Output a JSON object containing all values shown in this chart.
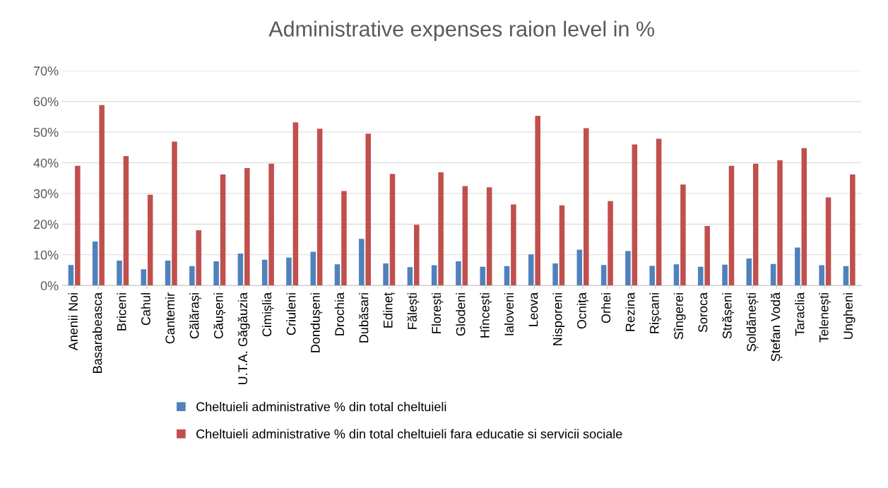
{
  "chart_data": {
    "type": "bar",
    "title": "Administrative expenses raion level in %",
    "categories": [
      "Anenii Noi",
      "Basarabeasca",
      "Briceni",
      "Cahul",
      "Cantemir",
      "Călărași",
      "Căușeni",
      "U.T.A. Găgăuzia",
      "Cimișlia",
      "Criuleni",
      "Dondușeni",
      "Drochia",
      "Dubăsari",
      "Edineț",
      "Fălești",
      "Florești",
      "Glodeni",
      "Hîncești",
      "Ialoveni",
      "Leova",
      "Nisporeni",
      "Ocnița",
      "Orhei",
      "Rezina",
      "Rișcani",
      "Sîngerei",
      "Soroca",
      "Strășeni",
      "Șoldănești",
      "Ștefan Vodă",
      "Taraclia",
      "Telenești",
      "Ungheni"
    ],
    "series": [
      {
        "name": "Cheltuieli administrative % din total cheltuieli",
        "color": "#4f81bd",
        "values": [
          6.7,
          14.3,
          8.1,
          5.3,
          8.1,
          6.3,
          7.9,
          10.4,
          8.4,
          9.1,
          11,
          6.9,
          15.2,
          7.2,
          6,
          6.6,
          7.9,
          6.1,
          6.3,
          10.1,
          7.2,
          11.7,
          6.7,
          11.2,
          6.4,
          6.9,
          6.1,
          6.8,
          8.8,
          7,
          12.4,
          6.6,
          6.3
        ]
      },
      {
        "name": "Cheltuieli administrative % din total cheltuieli fara educatie si servicii sociale",
        "color": "#c0504d",
        "values": [
          39,
          58.8,
          42.2,
          29.6,
          46.9,
          18,
          36.2,
          38.3,
          39.7,
          53.2,
          51.1,
          30.8,
          49.5,
          36.4,
          19.8,
          36.9,
          32.4,
          32,
          26.4,
          55.3,
          26.1,
          51.3,
          27.5,
          46,
          47.8,
          32.9,
          19.4,
          39,
          39.7,
          40.8,
          44.8,
          28.7,
          36.2
        ]
      }
    ],
    "ylim": [
      0,
      70
    ],
    "yticks": [
      {
        "value": 0,
        "label": "0%"
      },
      {
        "value": 10,
        "label": "10%"
      },
      {
        "value": 20,
        "label": "20%"
      },
      {
        "value": 30,
        "label": "30%"
      },
      {
        "value": 40,
        "label": "40%"
      },
      {
        "value": 50,
        "label": "50%"
      },
      {
        "value": 60,
        "label": "60%"
      },
      {
        "value": 70,
        "label": "70%"
      }
    ],
    "grid": "y",
    "legend": "bottom"
  }
}
